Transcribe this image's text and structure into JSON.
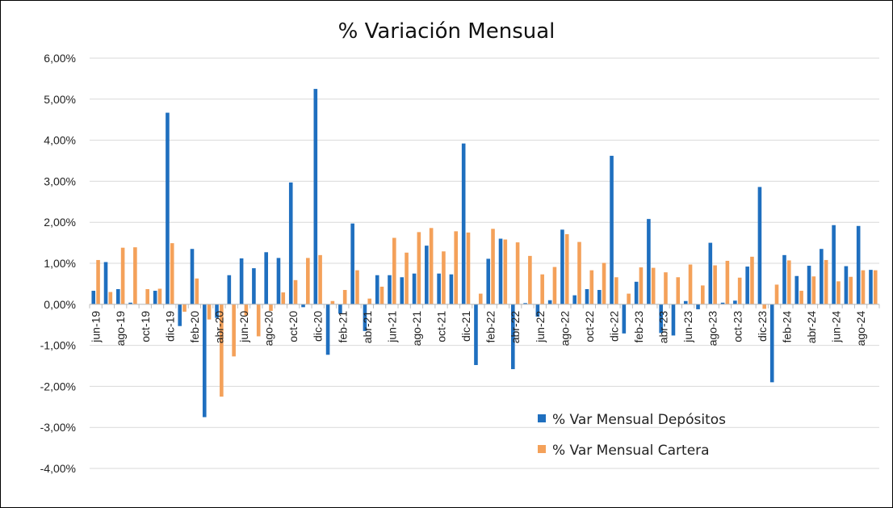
{
  "chart_data": {
    "type": "bar",
    "title": "% Variación Mensual",
    "xlabel": "",
    "ylabel": "",
    "ylim": [
      -0.04,
      0.06
    ],
    "yticks": [
      0.06,
      0.05,
      0.04,
      0.03,
      0.02,
      0.01,
      0.0,
      -0.01,
      -0.02,
      -0.03,
      -0.04
    ],
    "ytick_labels": [
      "6,00%",
      "5,00%",
      "4,00%",
      "3,00%",
      "2,00%",
      "1,00%",
      "0,00%",
      "-1,00%",
      "-2,00%",
      "-3,00%",
      "-4,00%"
    ],
    "grid": true,
    "legend_position": "bottom-right",
    "categories": [
      "jun-19",
      "jul-19",
      "ago-19",
      "sep-19",
      "oct-19",
      "nov-19",
      "dic-19",
      "ene-20",
      "feb-20",
      "mar-20",
      "abr-20",
      "may-20",
      "jun-20",
      "jul-20",
      "ago-20",
      "sep-20",
      "oct-20",
      "nov-20",
      "dic-20",
      "ene-21",
      "feb-21",
      "mar-21",
      "abr-21",
      "may-21",
      "jun-21",
      "jul-21",
      "ago-21",
      "sep-21",
      "oct-21",
      "nov-21",
      "dic-21",
      "ene-22",
      "feb-22",
      "mar-22",
      "abr-22",
      "may-22",
      "jun-22",
      "jul-22",
      "ago-22",
      "sep-22",
      "oct-22",
      "nov-22",
      "dic-22",
      "ene-23",
      "feb-23",
      "mar-23",
      "abr-23",
      "may-23",
      "jun-23",
      "jul-23",
      "ago-23",
      "sep-23",
      "oct-23",
      "nov-23",
      "dic-23",
      "ene-24",
      "feb-24",
      "mar-24",
      "abr-24",
      "may-24",
      "jun-24",
      "jul-24",
      "ago-24",
      "sep-24"
    ],
    "x_tick_labels": [
      "jun-19",
      "ago-19",
      "oct-19",
      "dic-19",
      "feb-20",
      "abr-20",
      "jun-20",
      "ago-20",
      "oct-20",
      "dic-20",
      "feb-21",
      "abr-21",
      "jun-21",
      "ago-21",
      "oct-21",
      "dic-21",
      "feb-22",
      "abr-22",
      "jun-22",
      "ago-22",
      "oct-22",
      "dic-22",
      "feb-23",
      "abr-23",
      "jun-23",
      "ago-23",
      "oct-23",
      "dic-23",
      "feb-24",
      "abr-24",
      "jun-24",
      "ago-24"
    ],
    "series": [
      {
        "name": "% Var Mensual Depósitos",
        "color": "#1F6FBF",
        "values": [
          0.0033,
          0.0103,
          0.0037,
          0.0004,
          0.0,
          0.0033,
          0.0467,
          -0.0053,
          0.0135,
          -0.0275,
          -0.0033,
          0.0071,
          0.0112,
          0.0088,
          0.0127,
          0.0113,
          0.0297,
          -0.0007,
          0.0525,
          -0.0123,
          -0.0023,
          0.0197,
          -0.0065,
          0.0071,
          0.0071,
          0.0066,
          0.0075,
          0.0143,
          0.0075,
          0.0073,
          0.0392,
          -0.0148,
          0.0111,
          0.016,
          -0.0158,
          0.0003,
          -0.003,
          0.001,
          0.0182,
          0.0022,
          0.0037,
          0.0035,
          0.0362,
          -0.0071,
          0.0055,
          0.0208,
          -0.007,
          -0.0076,
          0.0008,
          -0.0012,
          0.015,
          0.0004,
          0.0009,
          0.0092,
          0.0286,
          -0.019,
          0.012,
          0.0069,
          0.0094,
          0.0135,
          0.0193,
          0.0093,
          0.0191,
          0.0084
        ]
      },
      {
        "name": "% Var Mensual Cartera",
        "color": "#F4A15A",
        "values": [
          0.0108,
          0.003,
          0.0138,
          0.0139,
          0.0037,
          0.0038,
          0.0149,
          -0.0018,
          0.0063,
          -0.0037,
          -0.0225,
          -0.0127,
          -0.0027,
          -0.0078,
          -0.0016,
          0.0029,
          0.0059,
          0.0113,
          0.012,
          0.0008,
          0.0035,
          0.0083,
          0.0014,
          0.0043,
          0.0162,
          0.0126,
          0.0176,
          0.0186,
          0.0129,
          0.0178,
          0.0175,
          0.0026,
          0.0184,
          0.0158,
          0.0151,
          0.0118,
          0.0073,
          0.0091,
          0.0171,
          0.0152,
          0.0083,
          0.0101,
          0.0066,
          0.0026,
          0.009,
          0.0089,
          0.0078,
          0.0066,
          0.0097,
          0.0046,
          0.0095,
          0.0106,
          0.0065,
          0.0116,
          -0.0011,
          0.0048,
          0.0107,
          0.0033,
          0.0068,
          0.0108,
          0.0056,
          0.0067,
          0.0083,
          0.0083
        ]
      }
    ]
  }
}
